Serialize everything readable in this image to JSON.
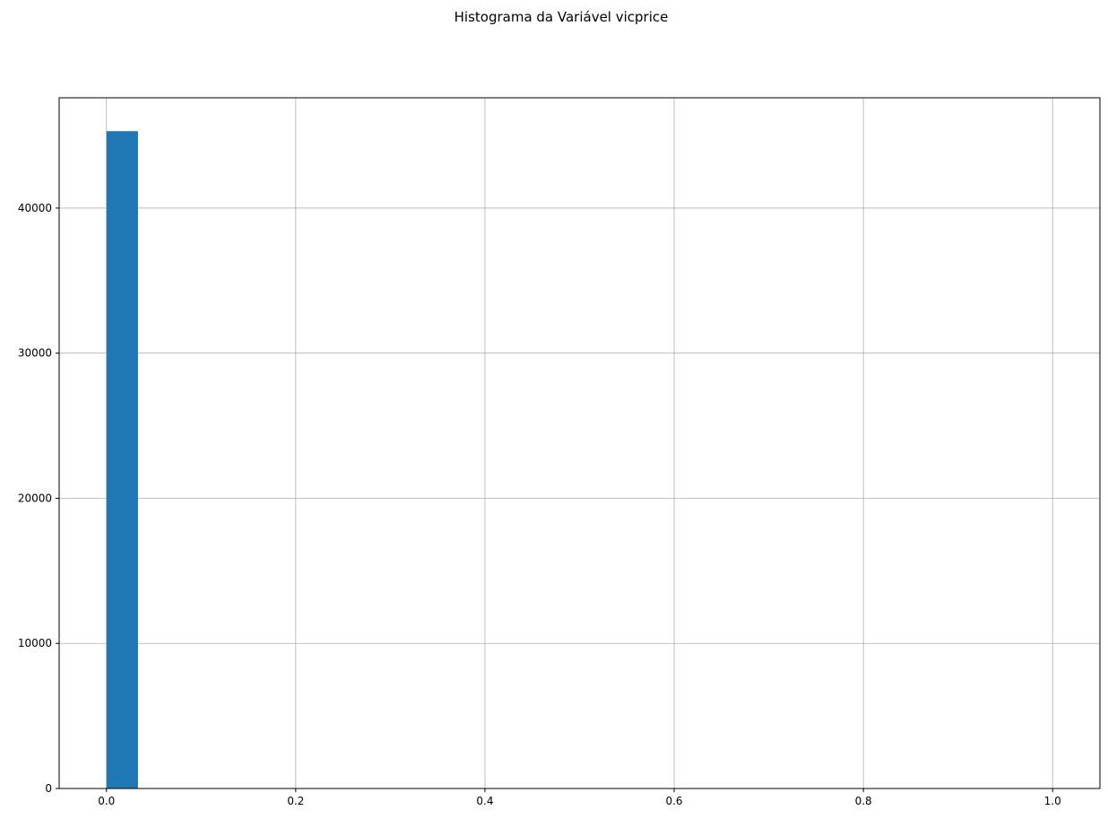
{
  "chart_data": {
    "type": "bar",
    "title": "Histograma da Variável vicprice",
    "xlabel": "",
    "ylabel": "",
    "xlim": [
      -0.05,
      1.05
    ],
    "ylim": [
      0,
      47600
    ],
    "grid": true,
    "bar_color": "#1f77b4",
    "bins": [
      {
        "x0": 0.0,
        "x1": 0.0333,
        "count": 45300
      }
    ],
    "x_ticks": [
      {
        "value": 0.0,
        "label": "0.0"
      },
      {
        "value": 0.2,
        "label": "0.2"
      },
      {
        "value": 0.4,
        "label": "0.4"
      },
      {
        "value": 0.6,
        "label": "0.6"
      },
      {
        "value": 0.8,
        "label": "0.8"
      },
      {
        "value": 1.0,
        "label": "1.0"
      }
    ],
    "y_ticks": [
      {
        "value": 0,
        "label": "0"
      },
      {
        "value": 10000,
        "label": "10000"
      },
      {
        "value": 20000,
        "label": "20000"
      },
      {
        "value": 30000,
        "label": "30000"
      },
      {
        "value": 40000,
        "label": "40000"
      }
    ]
  }
}
